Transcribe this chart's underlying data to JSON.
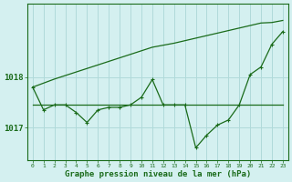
{
  "x": [
    0,
    1,
    2,
    3,
    4,
    5,
    6,
    7,
    8,
    9,
    10,
    11,
    12,
    13,
    14,
    15,
    16,
    17,
    18,
    19,
    20,
    21,
    22,
    23
  ],
  "y_main": [
    1017.8,
    1017.35,
    1017.45,
    1017.45,
    1017.3,
    1017.1,
    1017.35,
    1017.4,
    1017.4,
    1017.45,
    1017.6,
    1017.95,
    1017.45,
    1017.45,
    1017.45,
    1016.6,
    1016.85,
    1017.05,
    1017.15,
    1017.45,
    1018.05,
    1018.2,
    1018.65,
    1018.9
  ],
  "y_upper": [
    1017.8,
    1017.88,
    1017.96,
    1018.03,
    1018.1,
    1018.17,
    1018.24,
    1018.31,
    1018.38,
    1018.45,
    1018.52,
    1018.59,
    1018.63,
    1018.67,
    1018.72,
    1018.77,
    1018.82,
    1018.87,
    1018.92,
    1018.97,
    1019.02,
    1019.07,
    1019.08,
    1019.12
  ],
  "y_flat": [
    1017.45,
    1017.45,
    1017.45,
    1017.45,
    1017.45,
    1017.45,
    1017.45,
    1017.45,
    1017.45,
    1017.45,
    1017.45,
    1017.45,
    1017.45,
    1017.45,
    1017.45,
    1017.45,
    1017.45,
    1017.45,
    1017.45,
    1017.45,
    1017.45,
    1017.45,
    1017.45,
    1017.45
  ],
  "yticks": [
    1017,
    1018
  ],
  "ylim": [
    1016.35,
    1019.45
  ],
  "xlim": [
    -0.5,
    23.5
  ],
  "xlabel": "Graphe pression niveau de la mer (hPa)",
  "line_color": "#1a6b1a",
  "bg_color": "#d4f0f0",
  "grid_color": "#b0dada"
}
